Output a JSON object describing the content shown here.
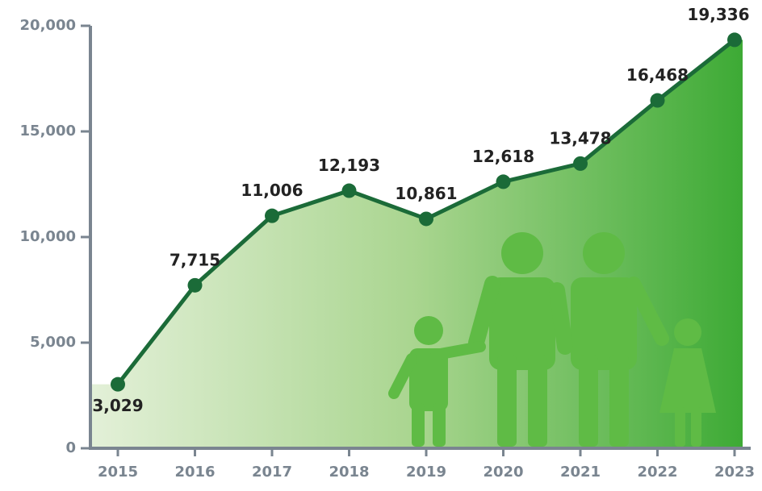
{
  "chart_data": {
    "type": "line",
    "categories": [
      "2015",
      "2016",
      "2017",
      "2018",
      "2019",
      "2020",
      "2021",
      "2022",
      "2023"
    ],
    "series": [
      {
        "color": "#1b6b38",
        "values": [
          3029,
          7715,
          11006,
          12193,
          10861,
          12618,
          13478,
          16468,
          19336
        ],
        "value_labels": [
          "3,029",
          "7,715",
          "11,006",
          "12,193",
          "10,861",
          "12,618",
          "13,478",
          "16,468",
          "19,336"
        ]
      }
    ],
    "ylim": [
      0,
      20000
    ],
    "yticks": [
      0,
      {
        "value": 5000,
        "label": "5,000"
      },
      {
        "value": 10000,
        "label": "10,000"
      },
      {
        "value": 15000,
        "label": "15,000"
      },
      {
        "value": 20000,
        "label": "20,000"
      }
    ],
    "grid": false
  }
}
